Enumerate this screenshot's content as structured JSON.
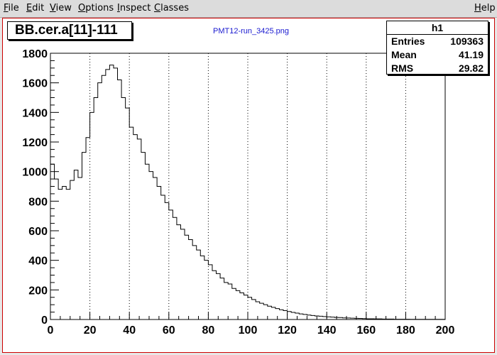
{
  "menubar": {
    "items": [
      "File",
      "Edit",
      "View",
      "Options",
      "Inspect",
      "Classes"
    ],
    "help": "Help"
  },
  "histogram": {
    "title": "BB.cer.a[11]-111",
    "subtitle": "PMT12-run_3425.png"
  },
  "stats": {
    "name": "h1",
    "rows": [
      {
        "label": "Entries",
        "value": "109363"
      },
      {
        "label": "Mean",
        "value": "41.19"
      },
      {
        "label": "RMS",
        "value": "29.82"
      }
    ]
  },
  "chart_data": {
    "type": "histogram",
    "title": "BB.cer.a[11]-111",
    "xlim": [
      0,
      200
    ],
    "ylim": [
      0,
      1800
    ],
    "bin_width": 2,
    "x_ticks": [
      0,
      20,
      40,
      60,
      80,
      100,
      120,
      140,
      160,
      180,
      200
    ],
    "y_ticks": [
      0,
      200,
      400,
      600,
      800,
      1000,
      1200,
      1400,
      1600,
      1800
    ],
    "grid": "vertical-dotted",
    "values": [
      1050,
      950,
      880,
      900,
      880,
      940,
      1010,
      960,
      1130,
      1230,
      1400,
      1500,
      1600,
      1650,
      1690,
      1720,
      1700,
      1620,
      1500,
      1430,
      1300,
      1250,
      1220,
      1130,
      1050,
      1000,
      960,
      900,
      840,
      790,
      740,
      690,
      640,
      610,
      570,
      540,
      500,
      470,
      430,
      400,
      370,
      330,
      310,
      280,
      250,
      240,
      210,
      195,
      180,
      165,
      150,
      135,
      120,
      110,
      100,
      90,
      82,
      74,
      66,
      60,
      54,
      48,
      43,
      38,
      34,
      30,
      27,
      24,
      22,
      20,
      18,
      16,
      14,
      13,
      11,
      10,
      9,
      8,
      7,
      6,
      5,
      5,
      4,
      4,
      3,
      3,
      3,
      2,
      2,
      2,
      2,
      1,
      1,
      1,
      1,
      1,
      1,
      1,
      1,
      1
    ]
  }
}
